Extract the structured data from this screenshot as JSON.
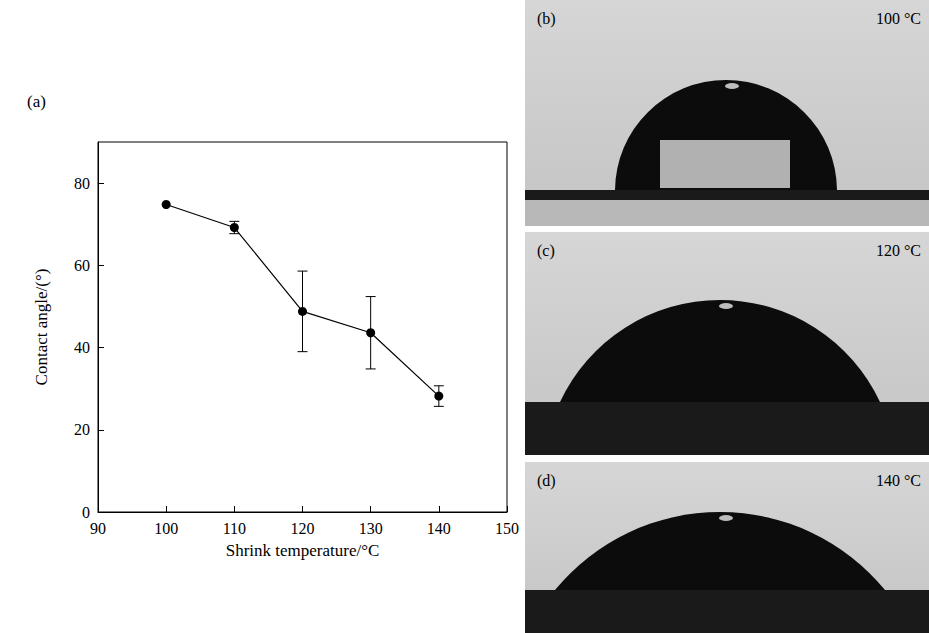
{
  "chart_data": {
    "type": "line",
    "panel_label": "(a)",
    "xlabel": "Shrink temperature/°C",
    "ylabel": "Contact angle/(°)",
    "x": [
      100,
      110,
      120,
      130,
      140
    ],
    "values": [
      74.8,
      69.2,
      48.8,
      43.6,
      28.2
    ],
    "errors": [
      0,
      1.5,
      9.8,
      8.8,
      2.5
    ],
    "color": "#000000",
    "marker": "circle",
    "line_style": "solid",
    "xlim": [
      90,
      150
    ],
    "xticks": [
      90,
      100,
      110,
      120,
      130,
      140,
      150
    ],
    "ylim": [
      0,
      90
    ],
    "yticks": [
      0,
      20,
      40,
      60,
      80
    ],
    "grid": false
  },
  "photos": [
    {
      "label": "(b)",
      "caption": "100 °C"
    },
    {
      "label": "(c)",
      "caption": "120 °C"
    },
    {
      "label": "(d)",
      "caption": "140 °C"
    }
  ]
}
